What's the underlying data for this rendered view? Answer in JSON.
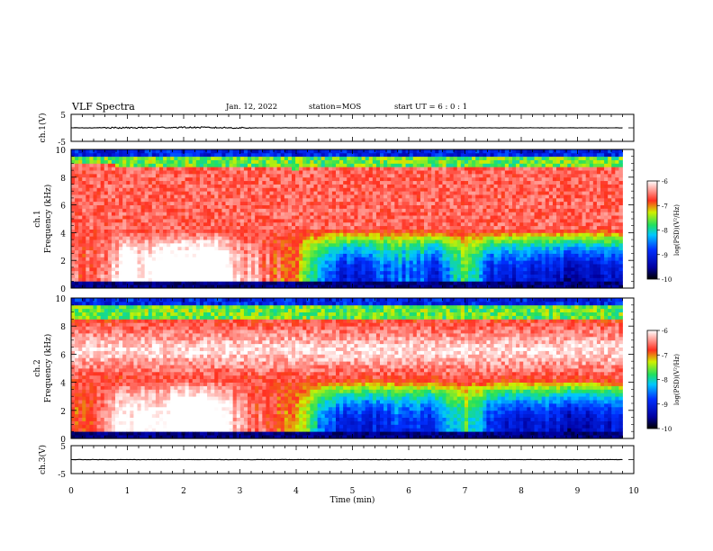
{
  "header": {
    "title": "VLF Spectra",
    "date": "Jan. 12, 2022",
    "station": "station=MOS",
    "start": "start UT =  6 : 0 : 1"
  },
  "chart_data": [
    {
      "type": "line",
      "panel": "ch1-waveform",
      "ylabel": "ch.1(V)",
      "ytick_labels": [
        "5",
        "-5"
      ],
      "ylim": [
        -5,
        5
      ],
      "x": [
        0,
        1,
        2,
        3,
        4,
        5,
        6,
        7,
        8,
        9,
        9.8
      ],
      "series": [
        {
          "values": [
            0,
            0,
            0.2,
            0,
            0,
            0,
            0,
            0,
            0,
            0,
            0
          ]
        }
      ]
    },
    {
      "type": "heatmap",
      "panel": "ch1-spectrogram",
      "ylabel": "ch.1",
      "ylabel2": "Frequency (kHz)",
      "yticks": [
        0,
        2,
        4,
        6,
        8,
        10
      ],
      "ylim": [
        0,
        10
      ],
      "xlim": [
        0,
        10
      ],
      "colorbar": {
        "label": "log(PSD)(V²/Hz)",
        "ticks": [
          "-6",
          "-7",
          "-8",
          "-9",
          "-10"
        ],
        "range": [
          -10,
          -6
        ]
      },
      "time_min": [
        0,
        0.5,
        1.0,
        1.5,
        2.0,
        2.5,
        3.0,
        3.5,
        4.0,
        4.5,
        5.0,
        5.5,
        6.0,
        6.5,
        7.0,
        7.5,
        8.0,
        8.5,
        9.0,
        9.5
      ],
      "broadband_top_khz": [
        9,
        9,
        8.8,
        8.8,
        8.8,
        8.8,
        8.8,
        8.8,
        8.6,
        8.8,
        8.8,
        8.8,
        8.8,
        8.8,
        8.8,
        8.8,
        8.8,
        8.8,
        8.8,
        8.8
      ],
      "low_freq_level": [
        -6.6,
        -6.6,
        -5.8,
        -5.8,
        -5.5,
        -5.5,
        -6.2,
        -6.6,
        -7.0,
        -8.5,
        -9.2,
        -8.8,
        -8.6,
        -9.0,
        -7.6,
        -9.0,
        -9.2,
        -9.0,
        -9.6,
        -9.2
      ]
    },
    {
      "type": "heatmap",
      "panel": "ch2-spectrogram",
      "ylabel": "ch.2",
      "ylabel2": "Frequency (kHz)",
      "yticks": [
        0,
        2,
        4,
        6,
        8,
        10
      ],
      "ylim": [
        0,
        10
      ],
      "xlim": [
        0,
        10
      ],
      "colorbar": {
        "label": "log(PSD)(V²/Hz)",
        "ticks": [
          "-6",
          "-7",
          "-8",
          "-9",
          "-10"
        ],
        "range": [
          -10,
          -6
        ]
      },
      "time_min": [
        0,
        0.5,
        1.0,
        1.5,
        2.0,
        2.5,
        3.0,
        3.5,
        4.0,
        4.5,
        5.0,
        5.5,
        6.0,
        6.5,
        7.0,
        7.5,
        8.0,
        8.5,
        9.0,
        9.5
      ],
      "broadband_top_khz": [
        8.6,
        8.6,
        8.6,
        8.6,
        8.6,
        8.6,
        8.6,
        8.6,
        8.6,
        8.6,
        8.6,
        8.6,
        8.6,
        8.6,
        8.6,
        8.6,
        8.6,
        8.6,
        8.6,
        8.6
      ],
      "low_freq_level": [
        -6.8,
        -6.6,
        -5.8,
        -5.8,
        -5.5,
        -5.5,
        -6.4,
        -6.6,
        -7.0,
        -8.6,
        -9.2,
        -9.0,
        -8.8,
        -9.0,
        -7.8,
        -9.0,
        -9.2,
        -9.0,
        -9.6,
        -9.2
      ]
    },
    {
      "type": "line",
      "panel": "ch3-waveform",
      "ylabel": "ch.3(V)",
      "ytick_labels": [
        "5",
        "-5"
      ],
      "ylim": [
        -5,
        5
      ],
      "x": [
        0,
        1,
        2,
        3,
        4,
        5,
        6,
        7,
        8,
        9,
        9.8
      ],
      "series": [
        {
          "values": [
            0,
            0,
            0,
            0,
            0,
            0,
            0,
            0,
            0,
            0,
            0
          ]
        }
      ]
    }
  ],
  "xaxis": {
    "label": "Time (min)",
    "ticks": [
      "0",
      "1",
      "2",
      "3",
      "4",
      "5",
      "6",
      "7",
      "8",
      "9",
      "10"
    ],
    "range": [
      0,
      10
    ]
  }
}
